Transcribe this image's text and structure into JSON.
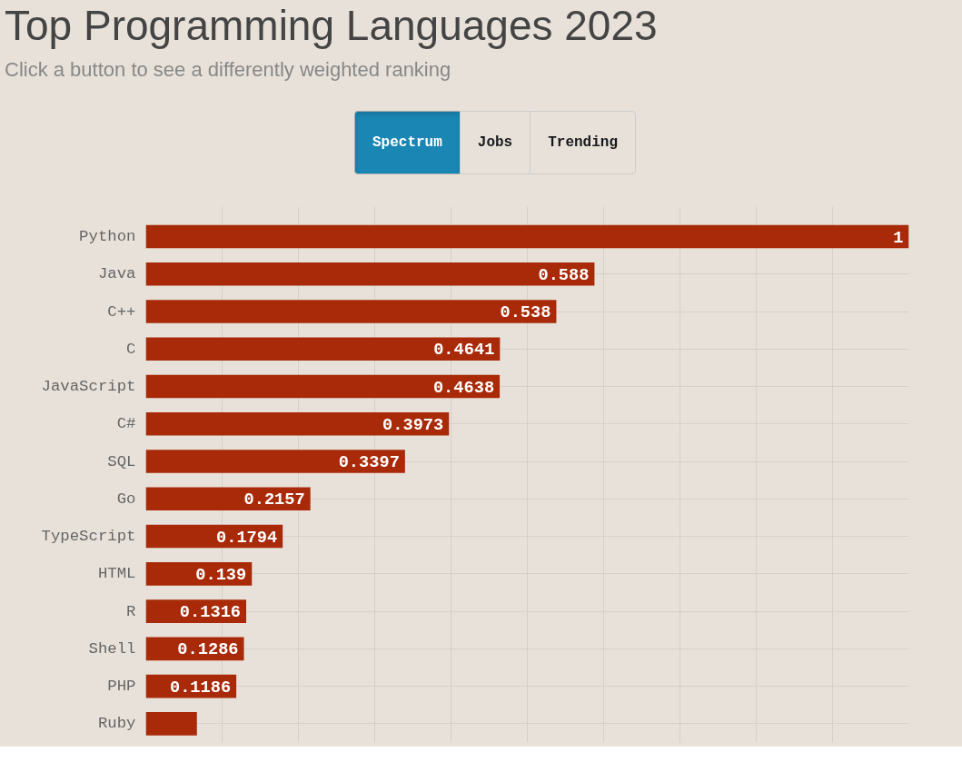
{
  "chart_data": {
    "type": "bar",
    "orientation": "horizontal",
    "title": "Top Programming Languages 2023",
    "subtitle": "Click a button to see a differently weighted ranking",
    "annotations": [
      "Spectrum",
      "Jobs",
      "Trending"
    ],
    "categories": [
      "Python",
      "Java",
      "C++",
      "C",
      "JavaScript",
      "C#",
      "SQL",
      "Go",
      "TypeScript",
      "HTML",
      "R",
      "Shell",
      "PHP",
      "Ruby"
    ],
    "values": [
      1,
      0.588,
      0.538,
      0.4641,
      0.4638,
      0.3973,
      0.3397,
      0.2157,
      0.1794,
      0.139,
      0.1316,
      0.1286,
      0.1186,
      0.067
    ],
    "value_labels": [
      "1",
      "0.588",
      "0.538",
      "0.4641",
      "0.4638",
      "0.3973",
      "0.3397",
      "0.2157",
      "0.1794",
      "0.139",
      "0.1316",
      "0.1286",
      "0.1186",
      null
    ],
    "color": "#a82a08",
    "xlim": [
      0,
      1
    ],
    "xticks": [
      {
        "value": 0.1,
        "label": null
      },
      {
        "value": 0.2,
        "label": null
      },
      {
        "value": 0.3,
        "label": null
      },
      {
        "value": 0.4,
        "label": null
      },
      {
        "value": 0.5,
        "label": null
      },
      {
        "value": 0.6,
        "label": null
      },
      {
        "value": 0.7,
        "label": null
      },
      {
        "value": 0.8,
        "label": null
      },
      {
        "value": 0.9,
        "label": null
      }
    ],
    "tick_labels": "y",
    "grid": true
  }
}
